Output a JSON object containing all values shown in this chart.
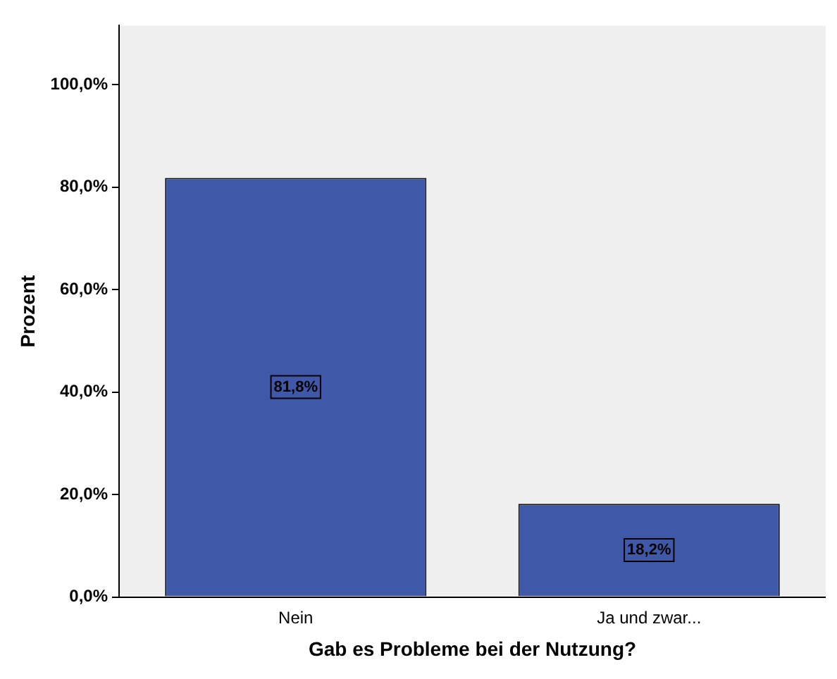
{
  "chart_data": {
    "type": "bar",
    "xlabel": "Gab es Probleme bei der Nutzung?",
    "ylabel": "Prozent",
    "categories": [
      "Nein",
      "Ja und zwar..."
    ],
    "values": [
      81.8,
      18.2
    ],
    "value_labels": [
      "81,8%",
      "18,2%"
    ],
    "color": "#3f58a8",
    "ylim": [
      0,
      111.5
    ],
    "yticks": [
      {
        "value": 0,
        "label": "0,0%"
      },
      {
        "value": 20,
        "label": "20,0%"
      },
      {
        "value": 40,
        "label": "40,0%"
      },
      {
        "value": 60,
        "label": "60,0%"
      },
      {
        "value": 80,
        "label": "80,0%"
      },
      {
        "value": 100,
        "label": "100,0%"
      }
    ],
    "grid": false,
    "legend": false
  }
}
